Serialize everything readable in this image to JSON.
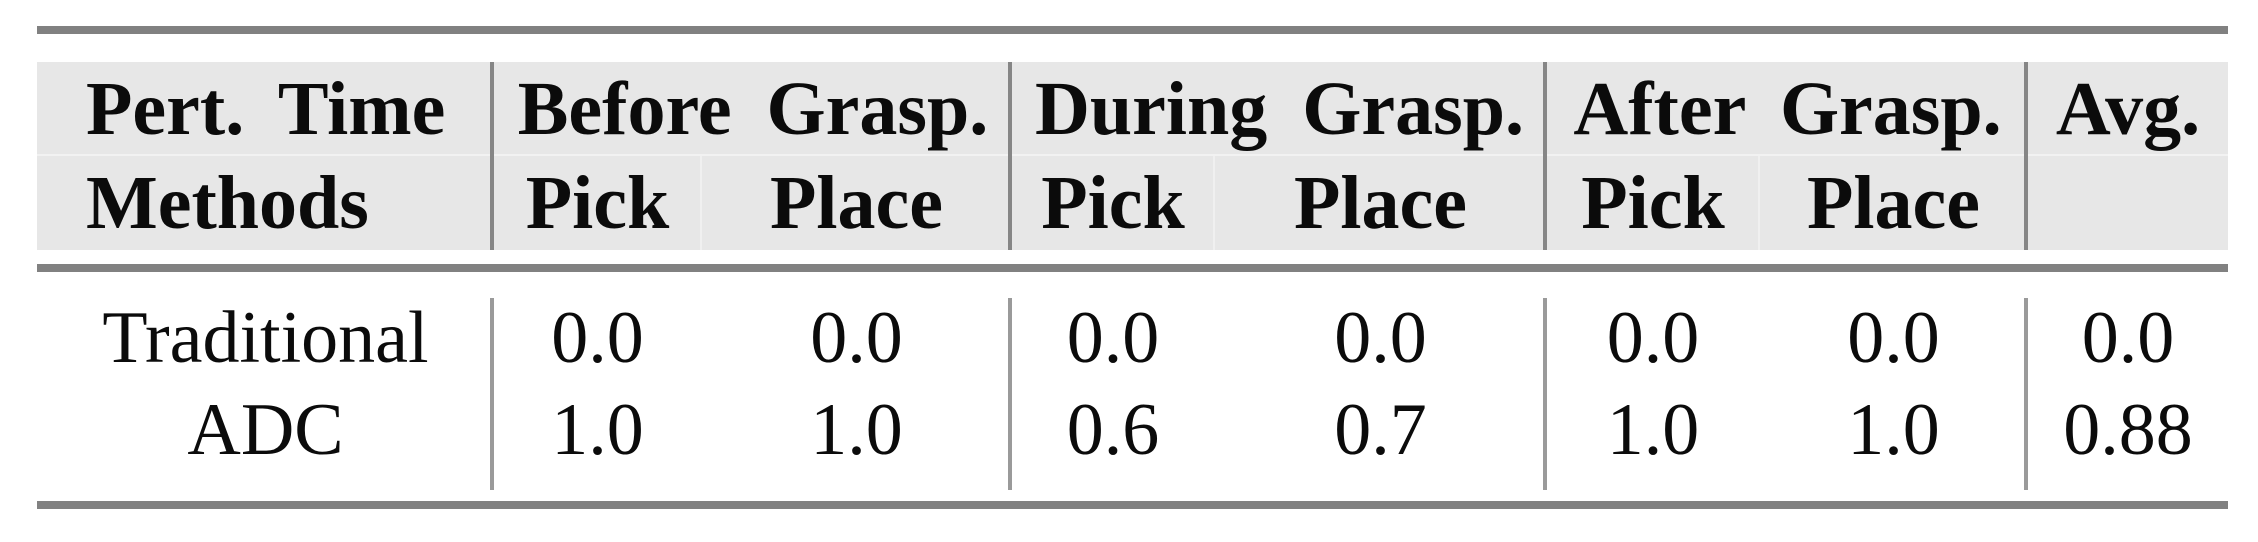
{
  "table": {
    "header": {
      "col1_line1": "Pert. Time",
      "col1_line2": "Methods",
      "groups": [
        {
          "label": "Before Grasp.",
          "sub": [
            "Pick",
            "Place"
          ]
        },
        {
          "label": "During Grasp.",
          "sub": [
            "Pick",
            "Place"
          ]
        },
        {
          "label": "After Grasp.",
          "sub": [
            "Pick",
            "Place"
          ]
        }
      ],
      "avg": "Avg."
    },
    "rows": [
      {
        "method": "Traditional",
        "values": [
          "0.0",
          "0.0",
          "0.0",
          "0.0",
          "0.0",
          "0.0",
          "0.0"
        ]
      },
      {
        "method": "ADC",
        "values": [
          "1.0",
          "1.0",
          "0.6",
          "0.7",
          "1.0",
          "1.0",
          "0.88"
        ]
      }
    ]
  },
  "colors": {
    "page_bg": "#ffffff",
    "header_bg": "#e7e7e7",
    "rule": "#818181",
    "divider_header": "#868686",
    "divider_body": "#9a9a9a",
    "hairline": "#f1f1f1",
    "text": "#0b0b0b"
  }
}
